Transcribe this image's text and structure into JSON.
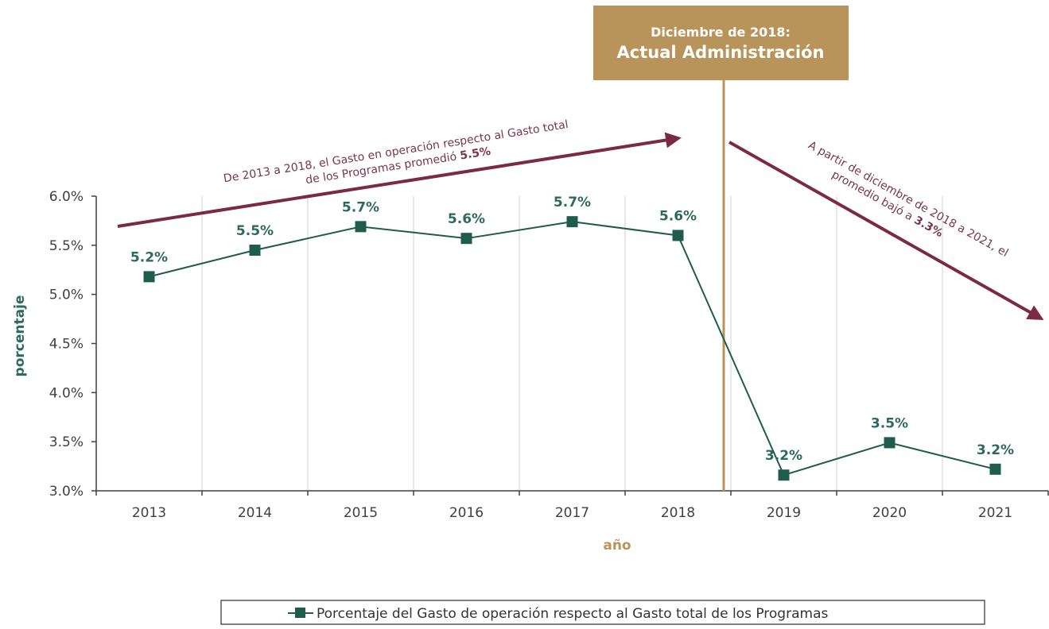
{
  "chart_data": {
    "type": "line",
    "title": "",
    "xlabel": "año",
    "ylabel": "porcentaje",
    "categories": [
      "2013",
      "2014",
      "2015",
      "2016",
      "2017",
      "2018",
      "2019",
      "2020",
      "2021"
    ],
    "series": [
      {
        "name": "Porcentaje del Gasto de operación respecto al Gasto total de los Programas",
        "values": [
          5.18,
          5.45,
          5.69,
          5.57,
          5.74,
          5.6,
          3.16,
          3.49,
          3.22
        ],
        "labels": [
          "5.2%",
          "5.5%",
          "5.7%",
          "5.6%",
          "5.7%",
          "5.6%",
          "3.2%",
          "3.5%",
          "3.2%"
        ],
        "color": "#1f5c4c"
      }
    ],
    "ylim": [
      3.0,
      6.0
    ],
    "yticks": [
      {
        "value": 6.0,
        "label": "6.0%"
      },
      {
        "value": 5.5,
        "label": "5.5%"
      },
      {
        "value": 5.0,
        "label": "5.0%"
      },
      {
        "value": 4.5,
        "label": "4.5%"
      },
      {
        "value": 4.0,
        "label": "4.0%"
      },
      {
        "value": 3.5,
        "label": "3.5%"
      },
      {
        "value": 3.0,
        "label": "3.0%"
      }
    ],
    "grid": "vertical",
    "legend_position": "bottom",
    "colors": {
      "series": "#1f5c4c",
      "annotation": "#7b2a45",
      "divider": "#b8935a",
      "box": "#b8935a"
    },
    "annotations": {
      "box_line1": "Diciembre de 2018:",
      "box_line2": "Actual Administración",
      "left_line1": "De 2013 a 2018, el Gasto en operación respecto al Gasto total",
      "left_line2_pre": "de los Programas promedió ",
      "left_line2_bold": "5.5%",
      "right_line1": "A partir de diciembre de 2018 a 2021, el",
      "right_line2_pre": "promedio bajó a ",
      "right_line2_bold": "3.3%"
    }
  }
}
